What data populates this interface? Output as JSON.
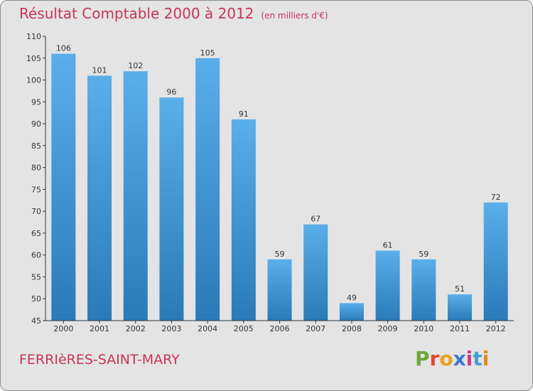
{
  "header": {
    "title": "Résultat Comptable 2000 à 2012",
    "subtitle": "(en milliers d'€)"
  },
  "footer": {
    "town": "FERRIèRES-SAINT-MARY",
    "logo_letters": [
      "P",
      "r",
      "o",
      "x",
      "i",
      "t",
      "i"
    ]
  },
  "colors": {
    "title": "#c8345a",
    "bar_top": "#5aaeea",
    "bar_bottom": "#2a7ab8",
    "background": "#e4e4e4",
    "logo": [
      "#6aa83a",
      "#e04a2a",
      "#e8a020",
      "#3a7ad0",
      "#d03a8a",
      "#40a0d0",
      "#e08a20"
    ]
  },
  "chart_data": {
    "type": "bar",
    "categories": [
      "2000",
      "2001",
      "2002",
      "2003",
      "2004",
      "2005",
      "2006",
      "2007",
      "2008",
      "2009",
      "2010",
      "2011",
      "2012"
    ],
    "values": [
      106,
      101,
      102,
      96,
      105,
      91,
      59,
      67,
      49,
      61,
      59,
      51,
      72
    ],
    "data_labels": [
      "106",
      "101",
      "102",
      "96",
      "105",
      "91",
      "59",
      "67",
      "49",
      "61",
      "59",
      "51",
      "72"
    ],
    "y_ticks": [
      "45",
      "50",
      "55",
      "60",
      "65",
      "70",
      "75",
      "80",
      "85",
      "90",
      "95",
      "100",
      "105",
      "110"
    ],
    "ylim": [
      45,
      110
    ],
    "grid": false,
    "legend": "none"
  }
}
